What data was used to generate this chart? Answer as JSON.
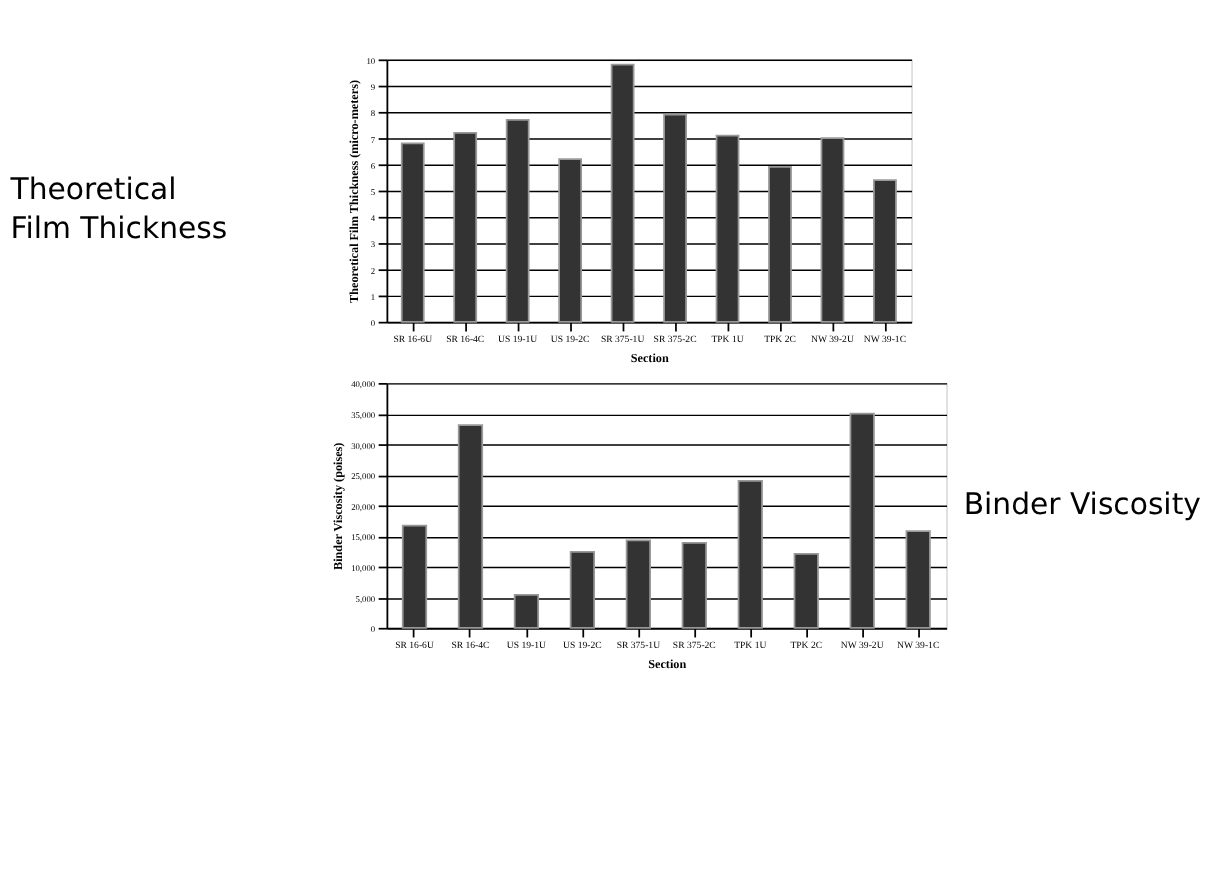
{
  "chart_data": [
    {
      "type": "bar",
      "annotations": [
        "Theoretical Film Thickness"
      ],
      "xlabel": "Section",
      "ylabel": "Theoretical Film Thickness (micro-meters)",
      "categories": [
        "SR 16-6U",
        "SR 16-4C",
        "US 19-1U",
        "US 19-2C",
        "SR 375-1U",
        "SR 375-2C",
        "TPK 1U",
        "TPK 2C",
        "NW 39-2U",
        "NW 39-1C"
      ],
      "values": [
        6.8,
        7.2,
        7.7,
        6.2,
        9.8,
        7.9,
        7.1,
        5.9,
        7.0,
        5.4
      ],
      "color": "#333333",
      "ylim": [
        0,
        10
      ],
      "yticks": [
        0,
        1,
        2,
        3,
        4,
        5,
        6,
        7,
        8,
        9,
        10
      ],
      "grid": "y"
    },
    {
      "type": "bar",
      "annotations": [
        "Binder Viscosity"
      ],
      "xlabel": "Section",
      "ylabel": "Binder Viscosity (poises)",
      "categories": [
        "SR 16-6U",
        "SR 16-4C",
        "US 19-1U",
        "US 19-2C",
        "SR 375-1U",
        "SR 375-2C",
        "TPK 1U",
        "TPK 2C",
        "NW 39-2U",
        "NW 39-1C"
      ],
      "values": [
        16700,
        33100,
        5400,
        12400,
        14300,
        13900,
        24000,
        12100,
        35000,
        15800
      ],
      "color": "#333333",
      "ylim": [
        0,
        40000
      ],
      "yticks": [
        0,
        {
          "value": 5000,
          "label": "5,000"
        },
        {
          "value": 10000,
          "label": "10,000"
        },
        {
          "value": 15000,
          "label": "15,000"
        },
        {
          "value": 20000,
          "label": "20,000"
        },
        {
          "value": 25000,
          "label": "25,000"
        },
        {
          "value": 30000,
          "label": "30,000"
        },
        {
          "value": 35000,
          "label": "35,000"
        },
        {
          "value": 40000,
          "label": "40,000"
        }
      ],
      "grid": "y"
    }
  ]
}
